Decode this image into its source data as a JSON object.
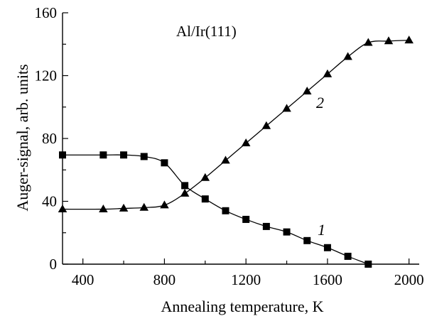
{
  "chart_data": {
    "type": "line",
    "title": "",
    "annotation": "Al/Ir(111)",
    "xlabel": "Annealing temperature, K",
    "ylabel": "Auger-signal, arb. units",
    "xlim": [
      300,
      2050
    ],
    "ylim": [
      0,
      160
    ],
    "x_ticks": [
      400,
      800,
      1200,
      1600,
      2000
    ],
    "y_ticks": [
      0,
      40,
      80,
      120,
      160
    ],
    "grid": false,
    "series": [
      {
        "name": "1",
        "marker": "square",
        "x": [
          300,
          500,
          600,
          700,
          800,
          900,
          1000,
          1100,
          1200,
          1300,
          1400,
          1500,
          1600,
          1700,
          1800
        ],
        "y": [
          69.5,
          69.5,
          69.5,
          68.5,
          64.5,
          50,
          41.5,
          34,
          28.5,
          24,
          20.5,
          15,
          10.5,
          5,
          0
        ]
      },
      {
        "name": "2",
        "marker": "triangle",
        "x": [
          300,
          500,
          600,
          700,
          800,
          900,
          1000,
          1100,
          1200,
          1300,
          1400,
          1500,
          1600,
          1700,
          1800,
          1900,
          2000
        ],
        "y": [
          35,
          35,
          35.5,
          36,
          37.5,
          45,
          55,
          66,
          77,
          88,
          99,
          110,
          121,
          132,
          141,
          142,
          142.5
        ]
      }
    ]
  }
}
